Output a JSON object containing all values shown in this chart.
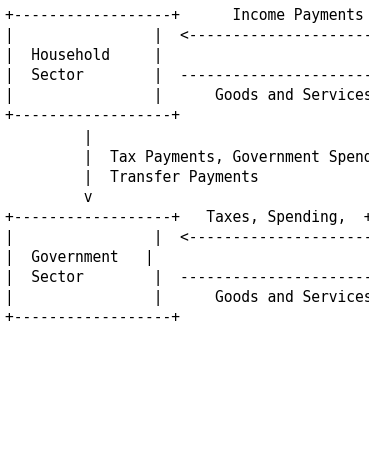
{
  "background_color": "#ffffff",
  "text_color": "#000000",
  "font_size": 10.5,
  "lines": [
    [
      5,
      8,
      "+------------------+      Income Payments      +------------------+"
    ],
    [
      5,
      28,
      "|                |  <--------------------------  |                |"
    ],
    [
      5,
      48,
      "|  Household     |                             |  Business      |"
    ],
    [
      5,
      68,
      "|  Sector        |  -------------------------> |  Sector        |"
    ],
    [
      5,
      88,
      "|                |      Goods and Services     |                |"
    ],
    [
      5,
      108,
      "+------------------+                           +------------------+"
    ],
    [
      5,
      130,
      "         |                                              |"
    ],
    [
      5,
      150,
      "         |  Tax Payments, Government Spending,         |"
    ],
    [
      5,
      170,
      "         |  Transfer Payments                          |"
    ],
    [
      5,
      190,
      "         v                                              v"
    ],
    [
      5,
      210,
      "+------------------+   Taxes, Spending,  +------------------+"
    ],
    [
      5,
      230,
      "|                |  <--------------------------  |                |"
    ],
    [
      5,
      250,
      "|  Government   |                             |  Business      |"
    ],
    [
      5,
      270,
      "|  Sector        |  -------------------------> |  Sector        |"
    ],
    [
      5,
      290,
      "|                |      Goods and Services     |                |"
    ],
    [
      5,
      310,
      "+------------------+                           +------------------+"
    ]
  ]
}
